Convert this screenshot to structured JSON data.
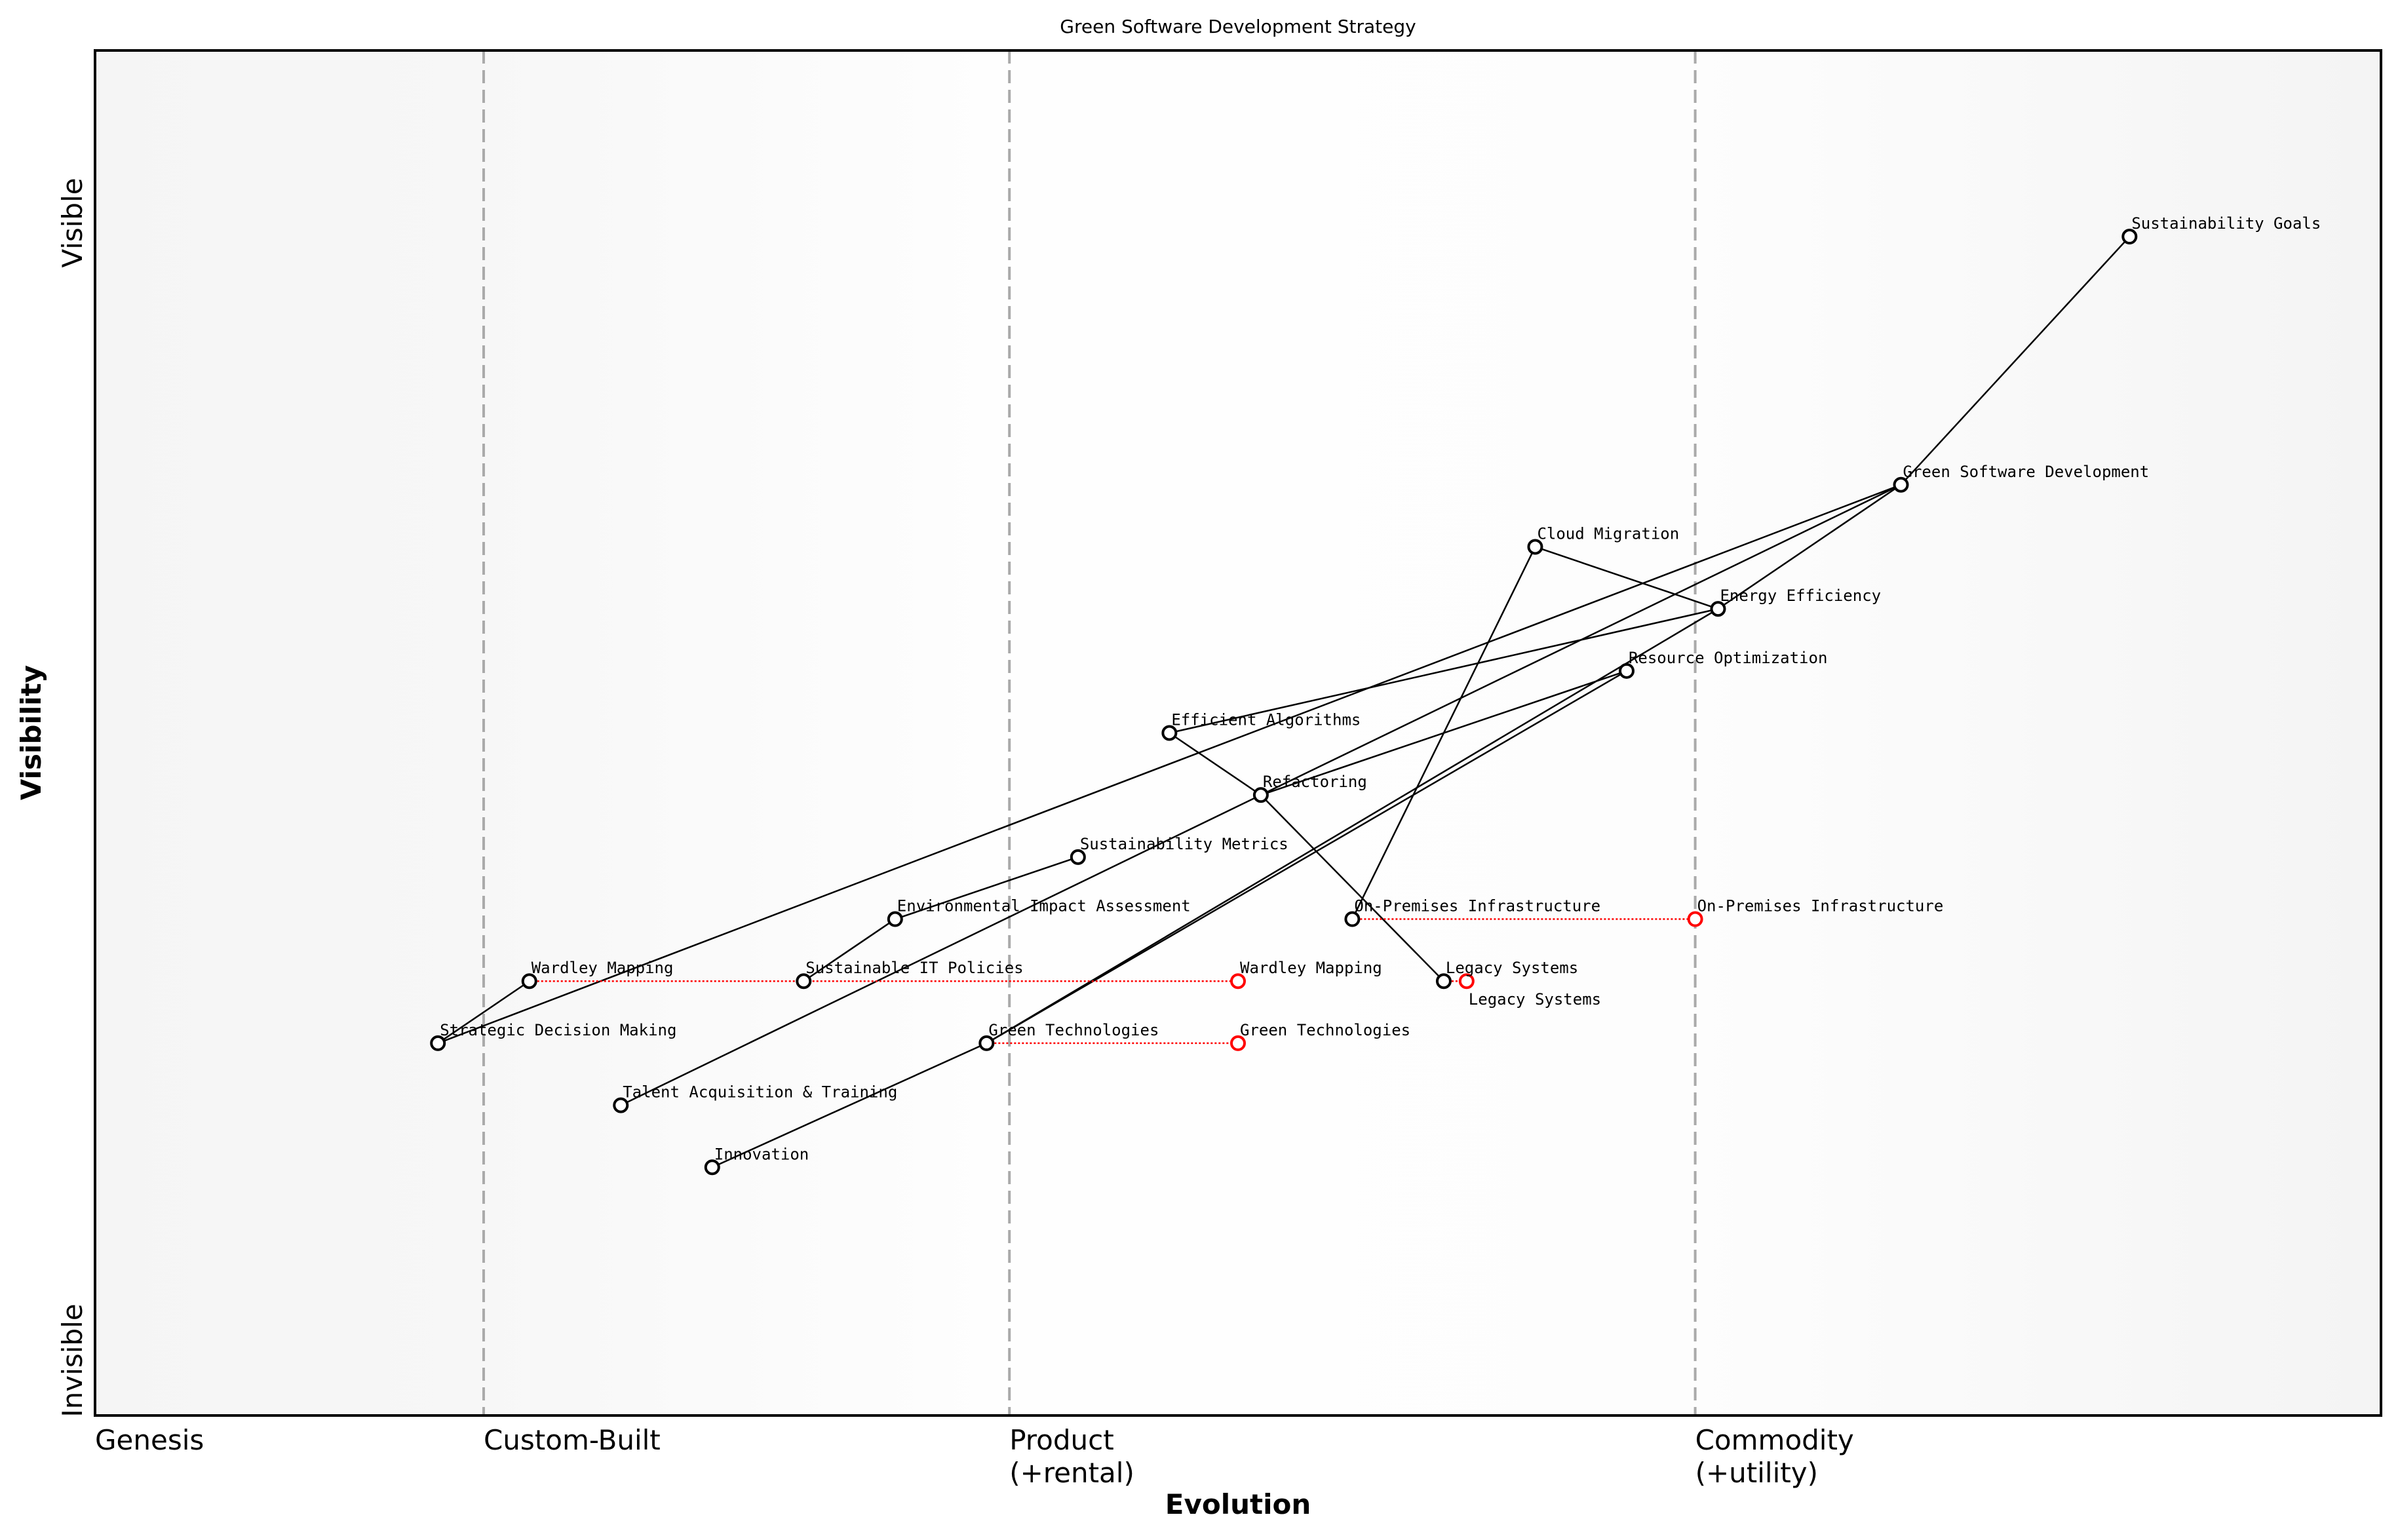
{
  "chart_data": {
    "type": "wardley-map",
    "title": "Green Software Development Strategy",
    "xlabel": "Evolution",
    "ylabel": "Visibility",
    "xlim": [
      0,
      1
    ],
    "ylim": [
      -0.05,
      1.05
    ],
    "y_top_label": "Visible",
    "y_bottom_label": "Invisible",
    "stages": [
      {
        "label": "Genesis",
        "x": 0
      },
      {
        "label": "Custom-Built",
        "x": 0.17
      },
      {
        "label": "Product",
        "sub": "(+rental)",
        "x": 0.4
      },
      {
        "label": "Commodity",
        "sub": "(+utility)",
        "x": 0.7
      }
    ],
    "components": [
      {
        "name": "Sustainability Goals",
        "x": 0.89,
        "y": 0.9
      },
      {
        "name": "Green Software Development",
        "x": 0.79,
        "y": 0.7
      },
      {
        "name": "Cloud Migration",
        "x": 0.63,
        "y": 0.65
      },
      {
        "name": "Energy Efficiency",
        "x": 0.71,
        "y": 0.6
      },
      {
        "name": "Resource Optimization",
        "x": 0.67,
        "y": 0.55
      },
      {
        "name": "Efficient Algorithms",
        "x": 0.47,
        "y": 0.5
      },
      {
        "name": "Refactoring",
        "x": 0.51,
        "y": 0.45
      },
      {
        "name": "Sustainability Metrics",
        "x": 0.43,
        "y": 0.4
      },
      {
        "name": "Environmental Impact Assessment",
        "x": 0.35,
        "y": 0.35
      },
      {
        "name": "On-Premises Infrastructure",
        "x": 0.55,
        "y": 0.35
      },
      {
        "name": "Wardley Mapping",
        "x": 0.19,
        "y": 0.3
      },
      {
        "name": "Sustainable IT Policies",
        "x": 0.31,
        "y": 0.3
      },
      {
        "name": "Legacy Systems",
        "x": 0.59,
        "y": 0.3
      },
      {
        "name": "Strategic Decision Making",
        "x": 0.15,
        "y": 0.25
      },
      {
        "name": "Green Technologies",
        "x": 0.39,
        "y": 0.25
      },
      {
        "name": "Talent Acquisition & Training",
        "x": 0.23,
        "y": 0.2
      },
      {
        "name": "Innovation",
        "x": 0.27,
        "y": 0.15
      }
    ],
    "links": [
      [
        "Sustainability Goals",
        "Green Software Development"
      ],
      [
        "Green Software Development",
        "Energy Efficiency"
      ],
      [
        "Green Software Development",
        "Refactoring"
      ],
      [
        "Green Software Development",
        "Strategic Decision Making"
      ],
      [
        "Cloud Migration",
        "Energy Efficiency"
      ],
      [
        "Cloud Migration",
        "On-Premises Infrastructure"
      ],
      [
        "Energy Efficiency",
        "Efficient Algorithms"
      ],
      [
        "Energy Efficiency",
        "Green Technologies"
      ],
      [
        "Resource Optimization",
        "Refactoring"
      ],
      [
        "Resource Optimization",
        "Green Technologies"
      ],
      [
        "Efficient Algorithms",
        "Refactoring"
      ],
      [
        "Refactoring",
        "Legacy Systems"
      ],
      [
        "Refactoring",
        "Talent Acquisition & Training"
      ],
      [
        "Sustainability Metrics",
        "Environmental Impact Assessment"
      ],
      [
        "Environmental Impact Assessment",
        "Sustainable IT Policies"
      ],
      [
        "Strategic Decision Making",
        "Wardley Mapping"
      ],
      [
        "Green Technologies",
        "Innovation"
      ]
    ],
    "evolutions": [
      {
        "name": "On-Premises Infrastructure",
        "from": 0.55,
        "to": 0.7,
        "y": 0.35
      },
      {
        "name": "Wardley Mapping",
        "from": 0.19,
        "to": 0.5,
        "y": 0.3
      },
      {
        "name": "Legacy Systems",
        "from": 0.59,
        "to": 0.6,
        "y": 0.3
      },
      {
        "name": "Green Technologies",
        "from": 0.39,
        "to": 0.5,
        "y": 0.25
      }
    ],
    "grid": false,
    "colors": {
      "node": "#000000",
      "evolved_node": "#ff0000",
      "stage_line": "#aaaaaa",
      "edge_bg": "#f5f5f5"
    }
  }
}
